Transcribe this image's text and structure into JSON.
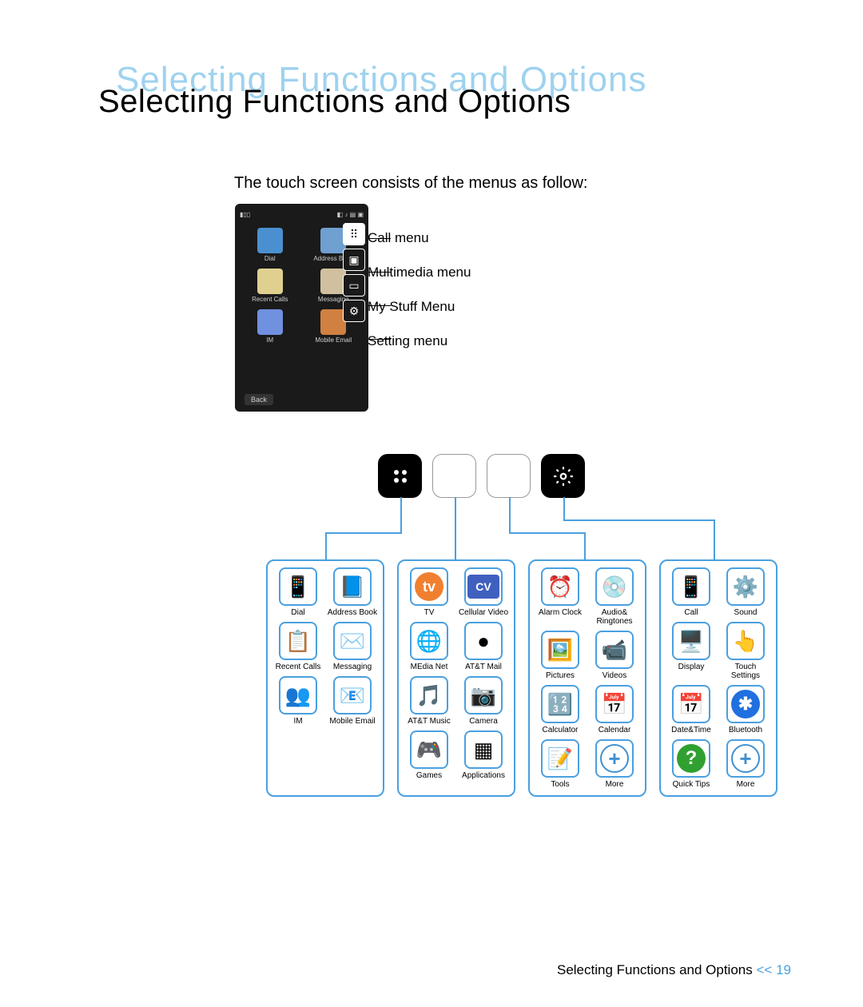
{
  "title": "Selecting Functions and Options",
  "intro": "The touch screen consists of the menus as follow:",
  "phone_icons": [
    {
      "label": "Dial",
      "bg": "#4a90d0"
    },
    {
      "label": "Address Book",
      "bg": "#6fa0d0"
    },
    {
      "label": "Recent Calls",
      "bg": "#e0d090"
    },
    {
      "label": "Messaging",
      "bg": "#d0c0a0"
    },
    {
      "label": "IM",
      "bg": "#7090e0"
    },
    {
      "label": "Mobile Email",
      "bg": "#d08040"
    }
  ],
  "menu_labels": [
    "Call menu",
    "Multimedia menu",
    "My Stuff Menu",
    "Setting menu"
  ],
  "side_icons": [
    "⠿",
    "▣",
    "▭",
    "⚙"
  ],
  "panels": [
    {
      "items": [
        {
          "l": "Dial",
          "e": "📱",
          "c": "#888"
        },
        {
          "l": "Address Book",
          "e": "📘",
          "c": "#5080c0"
        },
        {
          "l": "Recent Calls",
          "e": "📋",
          "c": "#d0a050"
        },
        {
          "l": "Messaging",
          "e": "✉️",
          "c": "#c0b090"
        },
        {
          "l": "IM",
          "e": "👥",
          "c": "#6090d0"
        },
        {
          "l": "Mobile Email",
          "e": "📧",
          "c": "#d07030"
        }
      ]
    },
    {
      "items": [
        {
          "l": "TV",
          "e": "tv",
          "c": "#f08030",
          "tv": true
        },
        {
          "l": "Cellular Video",
          "e": "CV",
          "c": "#4060c0",
          "cv": true
        },
        {
          "l": "MEdia Net",
          "e": "🌐",
          "c": "#3080c0"
        },
        {
          "l": "AT&T Mail",
          "e": "●",
          "c": "#5090d0"
        },
        {
          "l": "AT&T Music",
          "e": "🎵",
          "c": "#5080d0"
        },
        {
          "l": "Camera",
          "e": "📷",
          "c": "#999"
        },
        {
          "l": "Games",
          "e": "🎮",
          "c": "#bbb"
        },
        {
          "l": "Applications",
          "e": "▦",
          "c": "#888"
        }
      ]
    },
    {
      "items": [
        {
          "l": "Alarm Clock",
          "e": "⏰",
          "c": "#b0a080"
        },
        {
          "l": "Audio& Ringtones",
          "e": "💿",
          "c": "#888"
        },
        {
          "l": "Pictures",
          "e": "🖼️",
          "c": "#50a050"
        },
        {
          "l": "Videos",
          "e": "📹",
          "c": "#888"
        },
        {
          "l": "Calculator",
          "e": "🔢",
          "c": "#999"
        },
        {
          "l": "Calendar",
          "e": "📅",
          "c": "#d04040"
        },
        {
          "l": "Tools",
          "e": "📝",
          "c": "#c09050"
        },
        {
          "l": "More",
          "e": "+",
          "c": "#4090d0",
          "plus": true
        }
      ]
    },
    {
      "items": [
        {
          "l": "Call",
          "e": "📱",
          "c": "#888"
        },
        {
          "l": "Sound",
          "e": "⚙️",
          "c": "#999"
        },
        {
          "l": "Display",
          "e": "🖥️",
          "c": "#50a050"
        },
        {
          "l": "Touch Settings",
          "e": "👆",
          "c": "#70b030"
        },
        {
          "l": "Date&Time",
          "e": "📅",
          "c": "#d04040"
        },
        {
          "l": "Bluetooth",
          "e": "B",
          "c": "#2070e0",
          "bt": true
        },
        {
          "l": "Quick Tips",
          "e": "?",
          "c": "#30a030",
          "q": true
        },
        {
          "l": "More",
          "e": "+",
          "c": "#4090d0",
          "plus": true
        }
      ]
    }
  ],
  "footer_text": "Selecting Functions and Options",
  "footer_sep": "<<",
  "footer_page": "19",
  "back_label": "Back",
  "accent": "#4aa0e0"
}
